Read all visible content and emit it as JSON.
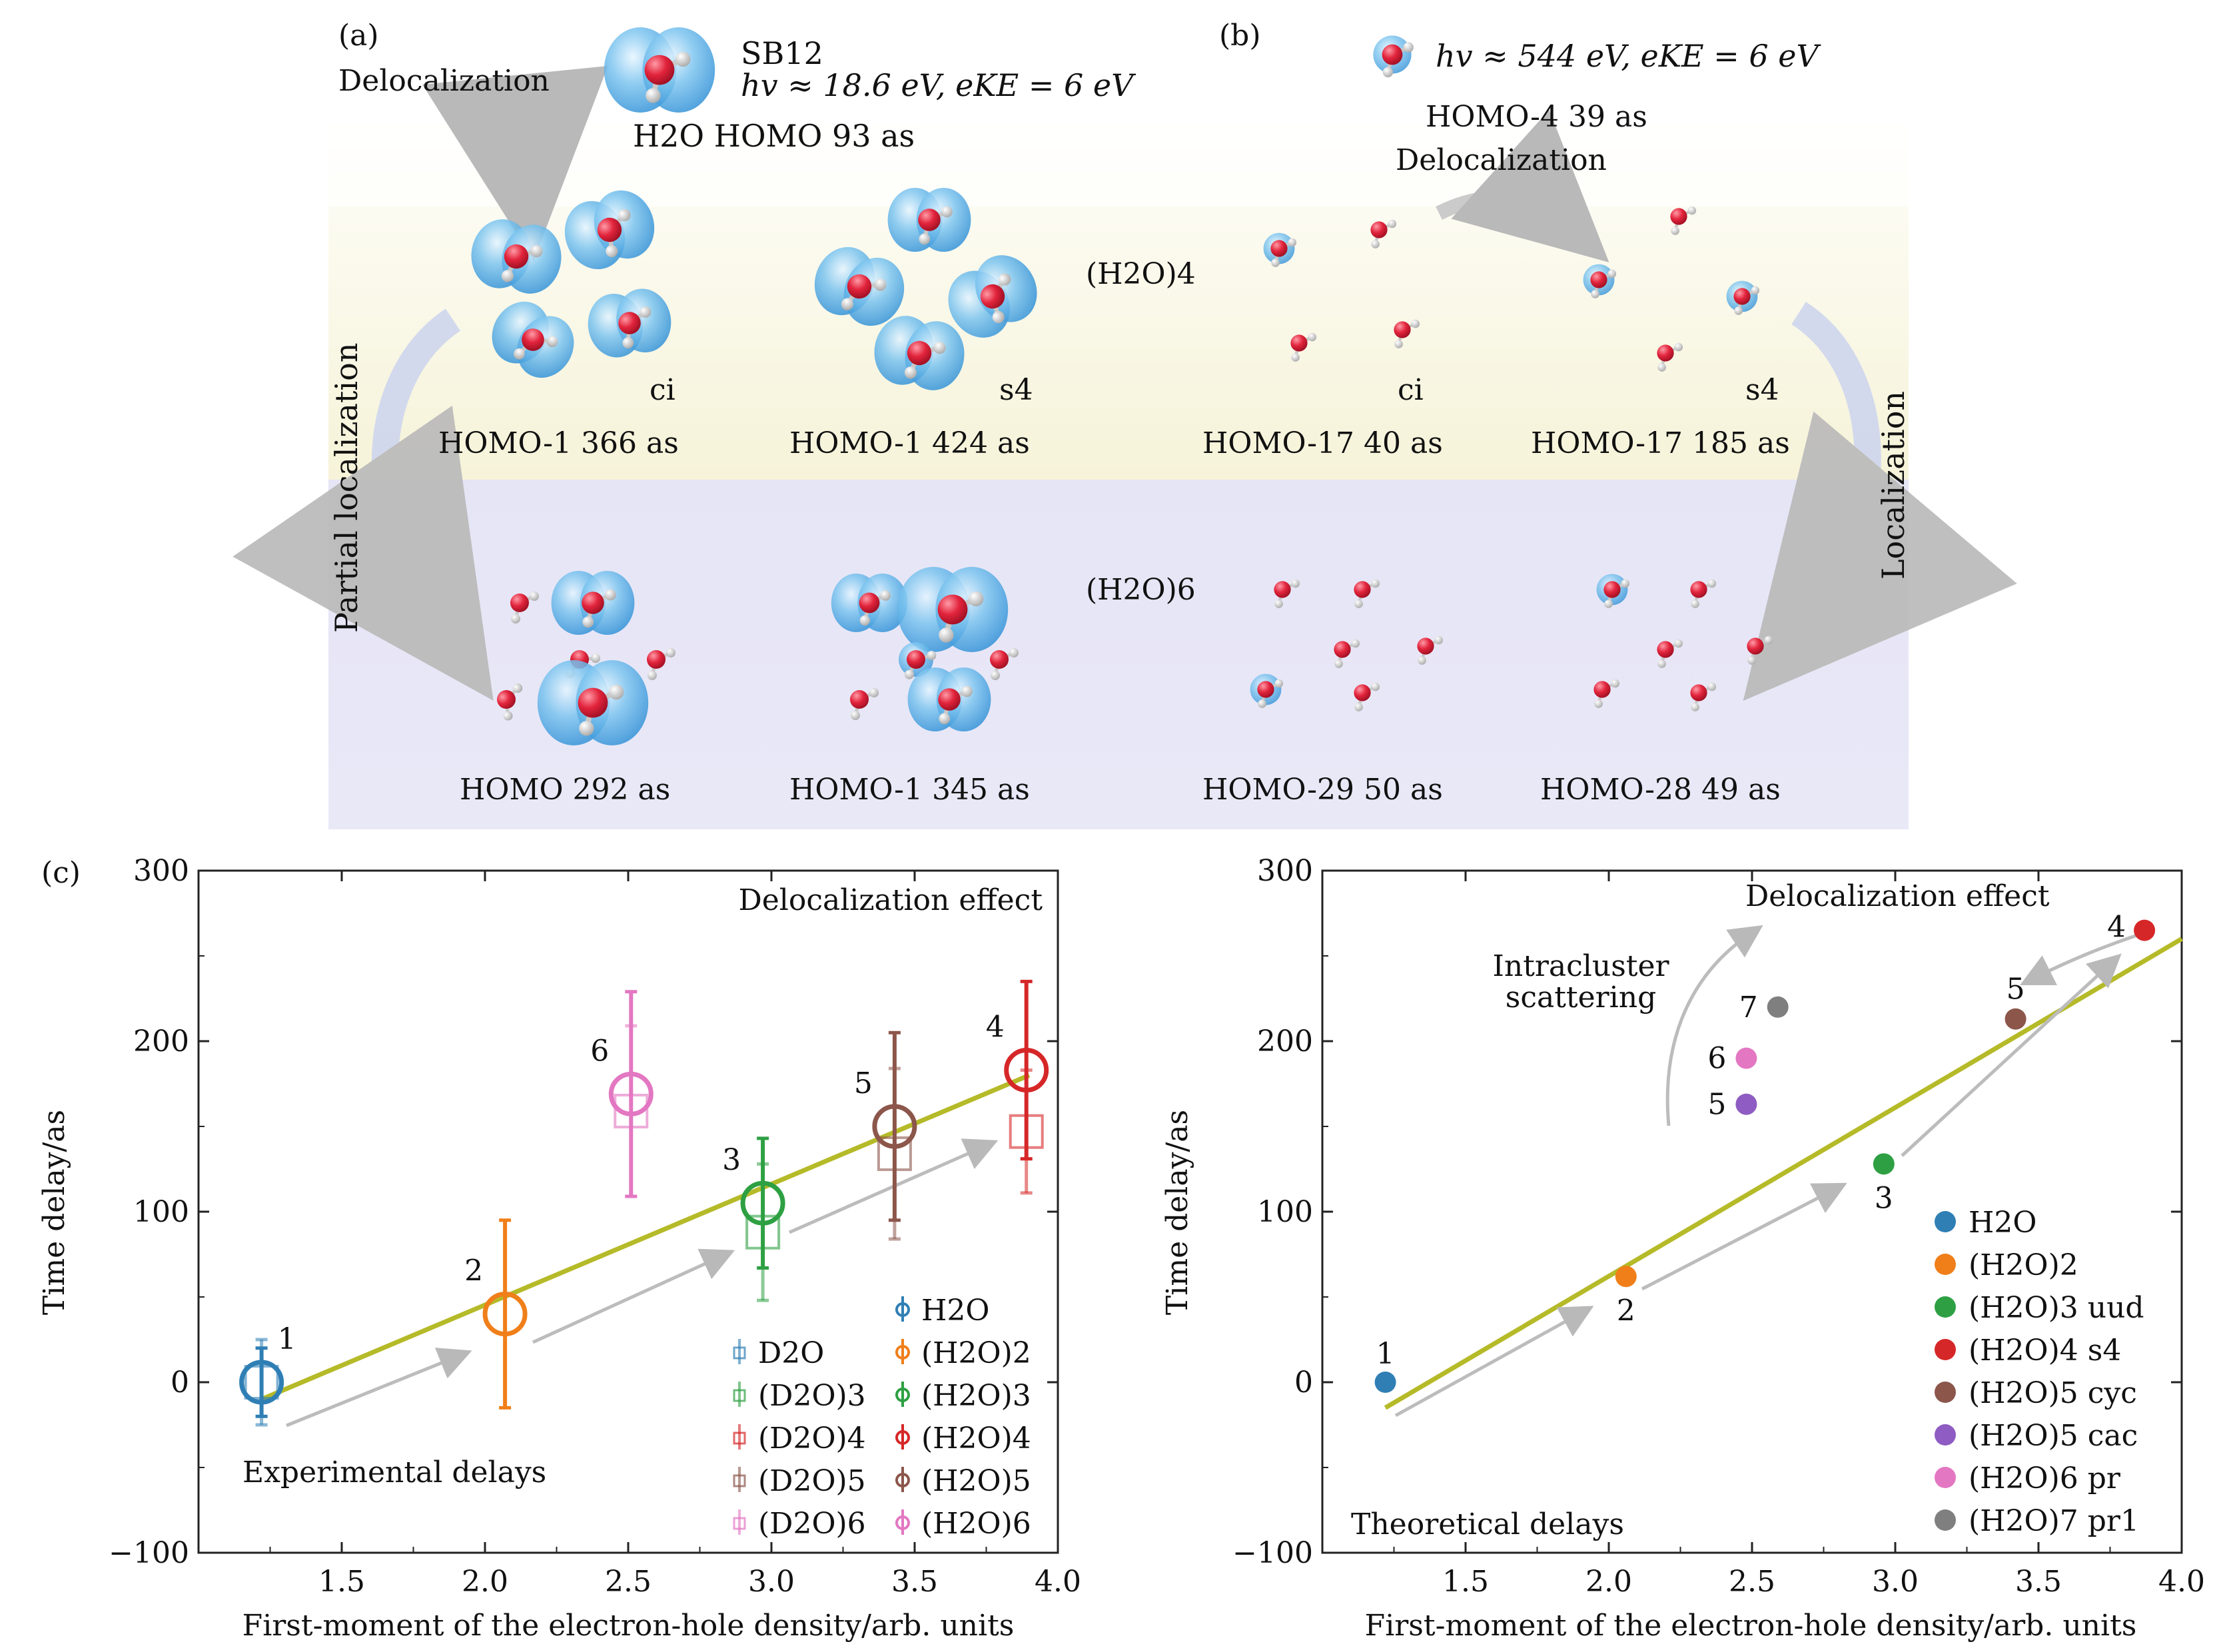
{
  "panel_a": {
    "label": "(a)",
    "delocalization": "Delocalization",
    "partial_localization": "Partial localization",
    "sb12": "SB12",
    "energy": "hv ≈ 18.6 eV, eKE = 6 eV",
    "h2o_homo": "H2O HOMO 93 as",
    "h2o4_ci_label": "ci",
    "h2o4_ci_caption": "HOMO-1   366 as",
    "h2o4_s4_label": "s4",
    "h2o4_s4_caption": "HOMO-1   424 as",
    "h2o6_left_caption": "HOMO 292 as",
    "h2o6_right_caption": "HOMO-1   345 as"
  },
  "panel_b": {
    "label": "(b)",
    "energy": "hv ≈ 544 eV, eKE = 6 eV",
    "homo4": "HOMO-4   39 as",
    "delocalization": "Delocalization",
    "localization": "Localization",
    "h2o4_ci_label": "ci",
    "h2o4_ci_caption": "HOMO-17   40 as",
    "h2o4_s4_label": "s4",
    "h2o4_s4_caption": "HOMO-17   185 as",
    "h2o6_left_caption": "HOMO-29   50 as",
    "h2o6_right_caption": "HOMO-28   49 as"
  },
  "row_labels": {
    "h2o4": "(H2O)4",
    "h2o6": "(H2O)6"
  },
  "colors": {
    "h2o": "#2f7fb5",
    "h2o2": "#f07f1a",
    "h2o3": "#2ea043",
    "h2o4": "#d62728",
    "h2o5": "#8c564b",
    "h2o5cac": "#8e5cc2",
    "h2o6": "#e377c2",
    "h2o7": "#7f7f7f",
    "fit": "#b5ba28",
    "arrow": "#bcbcbc",
    "band_top": "#faf8e6",
    "band_bottom": "#e9e7f8"
  },
  "chart_data": [
    {
      "type": "scatter",
      "panel_label": "(c)",
      "title": "Delocalization effect",
      "xlabel": "First-moment of the electron-hole density/arb. units",
      "ylabel": "Time delay/as",
      "xlim": [
        1.0,
        4.0
      ],
      "ylim": [
        -100,
        300
      ],
      "xticks": [
        "1.5",
        "2.0",
        "2.5",
        "3.0",
        "3.5",
        "4.0"
      ],
      "yticks": [
        "−100",
        "0",
        "100",
        "200",
        "300"
      ],
      "annotation": "Experimental delays",
      "fit_line": {
        "x": [
          1.22,
          3.9
        ],
        "y": [
          -10,
          180
        ]
      },
      "point_numbers": [
        "1",
        "2",
        "3",
        "4",
        "5",
        "6"
      ],
      "series": [
        {
          "name": "H2O",
          "x": 1.22,
          "y": 0,
          "err": 20,
          "num": "1",
          "color_key": "h2o"
        },
        {
          "name": "(H2O)2",
          "x": 2.07,
          "y": 40,
          "err": 55,
          "num": "2",
          "color_key": "h2o2"
        },
        {
          "name": "(H2O)3",
          "x": 2.97,
          "y": 105,
          "err": 38,
          "num": "3",
          "color_key": "h2o3"
        },
        {
          "name": "(H2O)4",
          "x": 3.89,
          "y": 183,
          "err": 52,
          "num": "4",
          "color_key": "h2o4"
        },
        {
          "name": "(H2O)5",
          "x": 3.43,
          "y": 150,
          "err": 55,
          "num": "5",
          "color_key": "h2o5"
        },
        {
          "name": "(H2O)6",
          "x": 2.51,
          "y": 169,
          "err": 60,
          "num": "6",
          "color_key": "h2o6"
        },
        {
          "name": "D2O",
          "x": 1.22,
          "y": 0,
          "err": 25,
          "color_key": "h2o"
        },
        {
          "name": "(D2O)3",
          "x": 2.97,
          "y": 88,
          "err": 40,
          "color_key": "h2o3"
        },
        {
          "name": "(D2O)4",
          "x": 3.89,
          "y": 147,
          "err": 36,
          "color_key": "h2o4"
        },
        {
          "name": "(D2O)5",
          "x": 3.43,
          "y": 134,
          "err": 50,
          "color_key": "h2o5"
        },
        {
          "name": "(D2O)6",
          "x": 2.51,
          "y": 159,
          "err": 50,
          "color_key": "h2o6"
        }
      ],
      "legend_left": [
        "D2O",
        "(D2O)3",
        "(D2O)4",
        "(D2O)5",
        "(D2O)6"
      ],
      "legend_right": [
        "H2O",
        "(H2O)2",
        "(H2O)3",
        "(H2O)4",
        "(H2O)5",
        "(H2O)6"
      ]
    },
    {
      "type": "scatter",
      "title": "Delocalization effect",
      "xlabel": "First-moment of the electron-hole density/arb. units",
      "ylabel": "Time delay/as",
      "xlim": [
        1.0,
        4.0
      ],
      "ylim": [
        -100,
        300
      ],
      "xticks": [
        "1.5",
        "2.0",
        "2.5",
        "3.0",
        "3.5",
        "4.0"
      ],
      "yticks": [
        "−100",
        "0",
        "100",
        "200",
        "300"
      ],
      "annotation": "Theoretical delays",
      "annotation2": "Intracluster scattering",
      "fit_line": {
        "x": [
          1.22,
          4.0
        ],
        "y": [
          -15,
          260
        ]
      },
      "series": [
        {
          "name": "H2O",
          "x": 1.22,
          "y": 0,
          "num": "1",
          "color_key": "h2o"
        },
        {
          "name": "(H2O)2",
          "x": 2.06,
          "y": 62,
          "num": "2",
          "color_key": "h2o2"
        },
        {
          "name": "(H2O)3 uud",
          "x": 2.96,
          "y": 128,
          "num": "3",
          "color_key": "h2o3"
        },
        {
          "name": "(H2O)4 s4",
          "x": 3.87,
          "y": 265,
          "num": "4",
          "color_key": "h2o4"
        },
        {
          "name": "(H2O)5 cyc",
          "x": 3.42,
          "y": 213,
          "num": "5",
          "color_key": "h2o5"
        },
        {
          "name": "(H2O)5 cac",
          "x": 2.48,
          "y": 163,
          "num": "5",
          "color_key": "h2o5cac"
        },
        {
          "name": "(H2O)6 pr",
          "x": 2.48,
          "y": 190,
          "num": "6",
          "color_key": "h2o6"
        },
        {
          "name": "(H2O)7 pr1",
          "x": 2.59,
          "y": 220,
          "num": "7",
          "color_key": "h2o7"
        }
      ],
      "legend": [
        "H2O",
        "(H2O)2",
        "(H2O)3 uud",
        "(H2O)4 s4",
        "(H2O)5 cyc",
        "(H2O)5 cac",
        "(H2O)6 pr",
        "(H2O)7 pr1"
      ]
    }
  ]
}
